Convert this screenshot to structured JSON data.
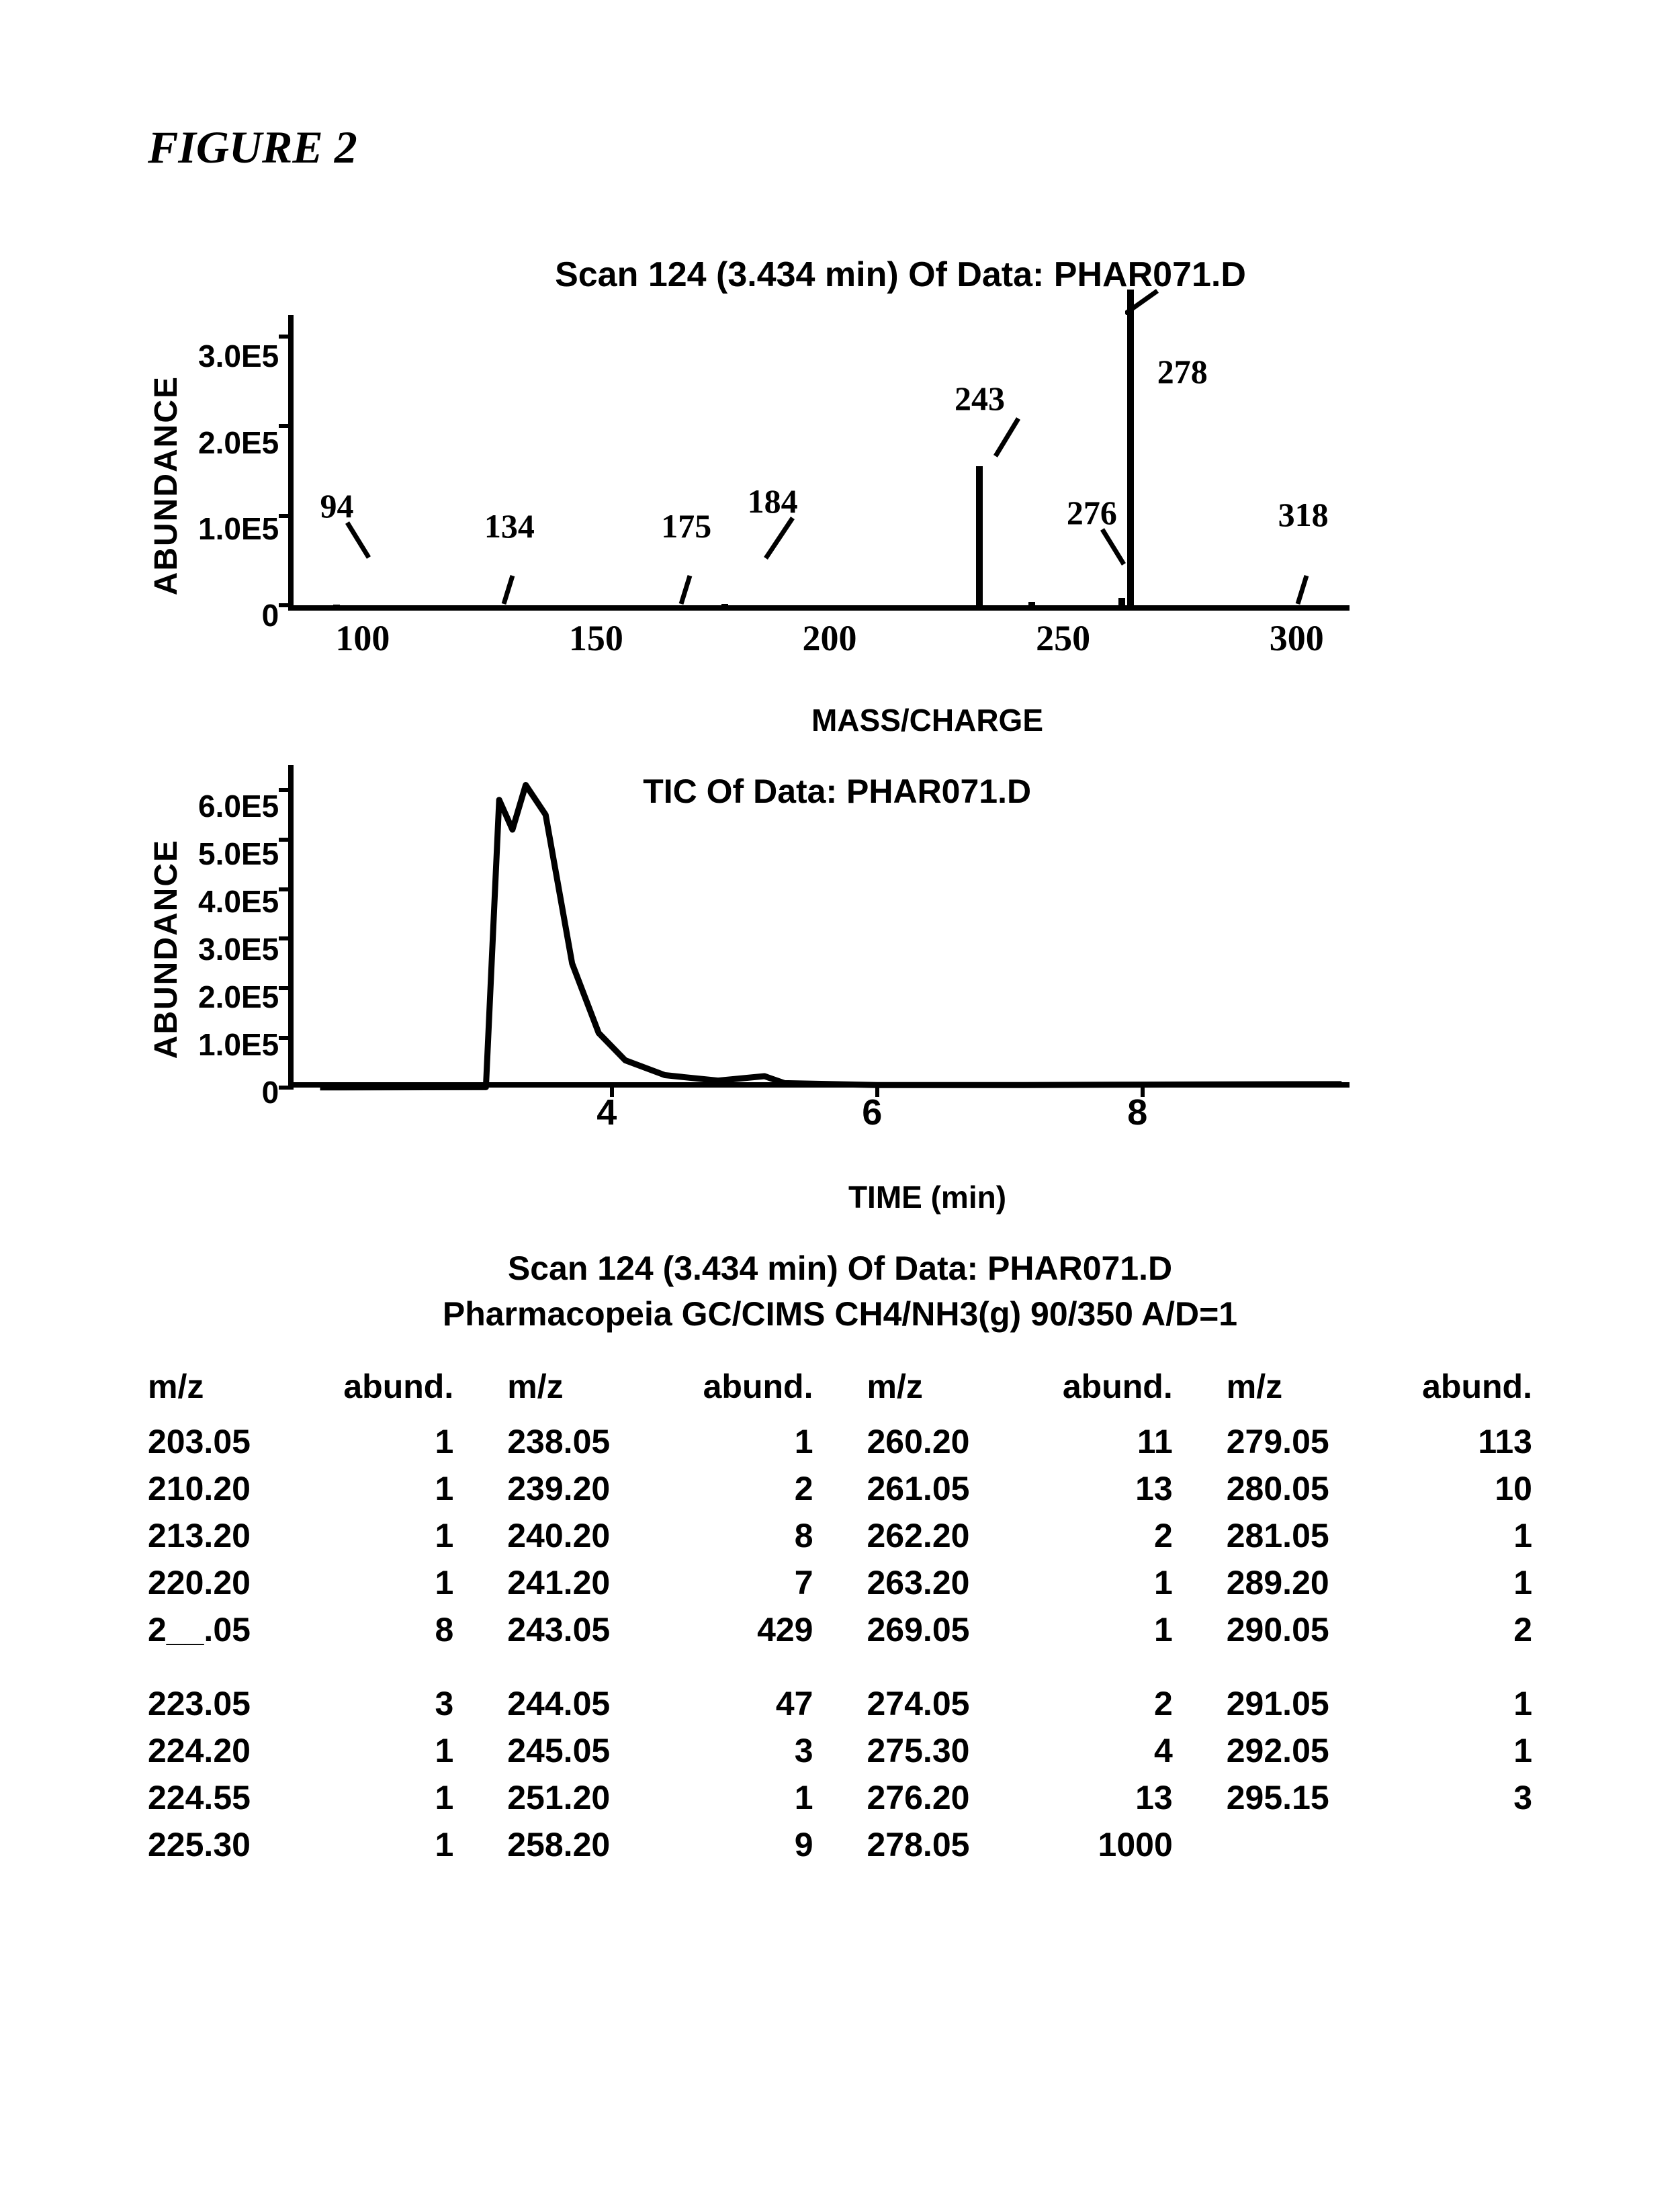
{
  "figure_title": "FIGURE 2",
  "chart1": {
    "title": "Scan 124 (3.434 min) Of Data: PHAR071.D",
    "ylabel": "ABUNDANCE",
    "xlabel": "MASS/CHARGE",
    "yticks": [
      "3.0E5",
      "2.0E5",
      "1.0E5",
      "0"
    ],
    "xticks": [
      {
        "label": "100",
        "pos": 7
      },
      {
        "label": "150",
        "pos": 29
      },
      {
        "label": "200",
        "pos": 51
      },
      {
        "label": "250",
        "pos": 73
      },
      {
        "label": "300",
        "pos": 95
      }
    ],
    "xlim": [
      84,
      330
    ],
    "ylim": [
      0,
      330000.0
    ],
    "peaks": [
      {
        "mz": 94,
        "abund": 900,
        "label": "94",
        "lx": 94,
        "ly": -115,
        "lead_dx": 2,
        "lead_dy": 56
      },
      {
        "mz": 134,
        "abund": 800,
        "label": "134",
        "lx": 134,
        "ly": -105,
        "tick_only": true
      },
      {
        "mz": 175,
        "abund": 700,
        "label": "175",
        "lx": 175,
        "ly": -105,
        "tick_only": true
      },
      {
        "mz": 184,
        "abund": 1200,
        "label": "184",
        "lx": 195,
        "ly": -128,
        "lead_dx": -6,
        "lead_dy": 64
      },
      {
        "mz": 243,
        "abund": 155000.0,
        "label": "243",
        "lx": 243,
        "ly": -245
      },
      {
        "mz": 255,
        "abund": 3500,
        "label": ""
      },
      {
        "mz": 276,
        "abund": 8000,
        "label": "276",
        "lx": 269,
        "ly": -122,
        "lead_dx": 9,
        "lead_dy": 56
      },
      {
        "mz": 278,
        "abund": 325000.0,
        "label": "278",
        "lx": 290,
        "ly": -245,
        "off_top": true
      },
      {
        "mz": 318,
        "abund": 900,
        "label": "318",
        "lx": 318,
        "ly": -108,
        "tick_only": true
      }
    ]
  },
  "chart2": {
    "title": "TIC Of Data: PHAR071.D",
    "ylabel": "ABUNDANCE",
    "xlabel": "TIME (min)",
    "yticks": [
      "6.0E5",
      "5.0E5",
      "4.0E5",
      "3.0E5",
      "2.0E5",
      "1.0E5",
      "0"
    ],
    "xticks": [
      {
        "label": "4",
        "pos": 30
      },
      {
        "label": "6",
        "pos": 55
      },
      {
        "label": "8",
        "pos": 80
      }
    ],
    "xlim": [
      1.6,
      9.6
    ],
    "ylim": [
      0,
      650000.0
    ],
    "line": [
      [
        1.8,
        300
      ],
      [
        3.05,
        800
      ],
      [
        3.15,
        580000.0
      ],
      [
        3.25,
        520000.0
      ],
      [
        3.35,
        610000.0
      ],
      [
        3.5,
        550000.0
      ],
      [
        3.7,
        250000.0
      ],
      [
        3.9,
        110000.0
      ],
      [
        4.1,
        55000.0
      ],
      [
        4.4,
        25000.0
      ],
      [
        4.8,
        14000.0
      ],
      [
        5.15,
        23000.0
      ],
      [
        5.3,
        9000.0
      ],
      [
        6.0,
        5000.0
      ],
      [
        7.0,
        5000.0
      ],
      [
        8.0,
        6000.0
      ],
      [
        9.5,
        7000.0
      ]
    ]
  },
  "table": {
    "header1": "Scan 124 (3.434 min) Of Data: PHAR071.D",
    "header2": "Pharmacopeia GC/CIMS CH4/NH3(g) 90/350 A/D=1",
    "col_head_mz": "m/z",
    "col_head_abund": "abund.",
    "columns": [
      [
        {
          "mz": "203.05",
          "ab": "1"
        },
        {
          "mz": "210.20",
          "ab": "1"
        },
        {
          "mz": "213.20",
          "ab": "1"
        },
        {
          "mz": "220.20",
          "ab": "1"
        },
        {
          "mz": "2__.05",
          "ab": "8"
        },
        {
          "gap": true
        },
        {
          "mz": "223.05",
          "ab": "3"
        },
        {
          "mz": "224.20",
          "ab": "1"
        },
        {
          "mz": "224.55",
          "ab": "1"
        },
        {
          "mz": "225.30",
          "ab": "1"
        }
      ],
      [
        {
          "mz": "238.05",
          "ab": "1"
        },
        {
          "mz": "239.20",
          "ab": "2"
        },
        {
          "mz": "240.20",
          "ab": "8"
        },
        {
          "mz": "241.20",
          "ab": "7"
        },
        {
          "mz": "243.05",
          "ab": "429"
        },
        {
          "gap": true
        },
        {
          "mz": "244.05",
          "ab": "47"
        },
        {
          "mz": "245.05",
          "ab": "3"
        },
        {
          "mz": "251.20",
          "ab": "1"
        },
        {
          "mz": "258.20",
          "ab": "9"
        }
      ],
      [
        {
          "mz": "260.20",
          "ab": "11"
        },
        {
          "mz": "261.05",
          "ab": "13"
        },
        {
          "mz": "262.20",
          "ab": "2"
        },
        {
          "mz": "263.20",
          "ab": "1"
        },
        {
          "mz": "269.05",
          "ab": "1"
        },
        {
          "gap": true
        },
        {
          "mz": "274.05",
          "ab": "2"
        },
        {
          "mz": "275.30",
          "ab": "4"
        },
        {
          "mz": "276.20",
          "ab": "13"
        },
        {
          "mz": "278.05",
          "ab": "1000"
        }
      ],
      [
        {
          "mz": "279.05",
          "ab": "113"
        },
        {
          "mz": "280.05",
          "ab": "10"
        },
        {
          "mz": "281.05",
          "ab": "1"
        },
        {
          "mz": "289.20",
          "ab": "1"
        },
        {
          "mz": "290.05",
          "ab": "2"
        },
        {
          "gap": true
        },
        {
          "mz": "291.05",
          "ab": "1"
        },
        {
          "mz": "292.05",
          "ab": "1"
        },
        {
          "mz": "295.15",
          "ab": "3"
        }
      ]
    ]
  }
}
